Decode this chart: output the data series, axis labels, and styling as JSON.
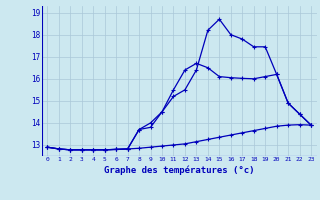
{
  "xlabel": "Graphe des températures (°c)",
  "background_color": "#cce8f0",
  "grid_color": "#aac8d8",
  "line_color": "#0000bb",
  "xlim": [
    -0.5,
    23.5
  ],
  "ylim": [
    12.5,
    19.3
  ],
  "xticks": [
    0,
    1,
    2,
    3,
    4,
    5,
    6,
    7,
    8,
    9,
    10,
    11,
    12,
    13,
    14,
    15,
    16,
    17,
    18,
    19,
    20,
    21,
    22,
    23
  ],
  "yticks": [
    13,
    14,
    15,
    16,
    17,
    18,
    19
  ],
  "line1_x": [
    0,
    1,
    2,
    3,
    4,
    5,
    6,
    7,
    8,
    9,
    10,
    11,
    12,
    13,
    14,
    15,
    16,
    17,
    18,
    19,
    20,
    21,
    22,
    23
  ],
  "line1_y": [
    12.9,
    12.82,
    12.78,
    12.78,
    12.78,
    12.78,
    12.8,
    12.82,
    12.85,
    12.9,
    12.95,
    13.0,
    13.05,
    13.15,
    13.25,
    13.35,
    13.45,
    13.55,
    13.65,
    13.75,
    13.85,
    13.9,
    13.92,
    13.9
  ],
  "line2_x": [
    0,
    1,
    2,
    3,
    4,
    5,
    6,
    7,
    8,
    9,
    10,
    11,
    12,
    13,
    14,
    15,
    16,
    17,
    18,
    19,
    20,
    21,
    22,
    23
  ],
  "line2_y": [
    12.9,
    12.82,
    12.78,
    12.78,
    12.78,
    12.78,
    12.8,
    12.82,
    13.7,
    13.8,
    14.5,
    15.2,
    15.5,
    16.4,
    18.2,
    18.7,
    18.0,
    17.8,
    17.45,
    17.45,
    16.2,
    14.9,
    14.4,
    13.9
  ],
  "line3_x": [
    0,
    1,
    2,
    3,
    4,
    5,
    6,
    7,
    8,
    9,
    10,
    11,
    12,
    13,
    14,
    15,
    16,
    17,
    18,
    19,
    20,
    21,
    22,
    23
  ],
  "line3_y": [
    12.9,
    12.82,
    12.78,
    12.78,
    12.78,
    12.78,
    12.8,
    12.82,
    13.7,
    14.0,
    14.5,
    15.5,
    16.4,
    16.7,
    16.5,
    16.1,
    16.05,
    16.02,
    16.0,
    16.1,
    16.2,
    14.9,
    14.4,
    13.9
  ]
}
